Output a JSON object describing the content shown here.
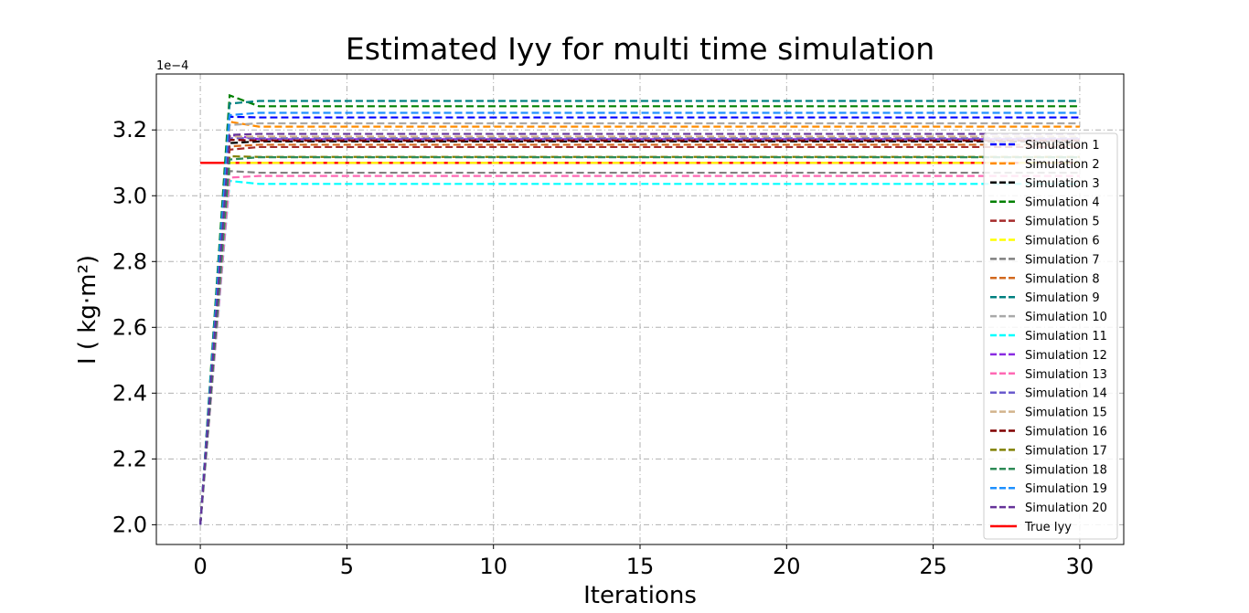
{
  "chart_data": {
    "type": "line",
    "title": "Estimated Iyy for multi time simulation",
    "xlabel": "Iterations",
    "ylabel": "I ( kg·m²)",
    "y_offset_label": "1e−4",
    "xlim": [
      -1.5,
      31.5
    ],
    "ylim": [
      1.94,
      3.37
    ],
    "x_ticks": [
      0,
      5,
      10,
      15,
      20,
      25,
      30
    ],
    "x_tick_labels": [
      "0",
      "5",
      "10",
      "15",
      "20",
      "25",
      "30"
    ],
    "y_ticks": [
      2.0,
      2.2,
      2.4,
      2.6,
      2.8,
      3.0,
      3.2
    ],
    "y_tick_labels": [
      "2.0",
      "2.2",
      "2.4",
      "2.6",
      "2.8",
      "3.0",
      "3.2"
    ],
    "grid": true,
    "legend_position": "right",
    "series": [
      {
        "name": "Simulation 1",
        "color": "#0000ff",
        "dash": true,
        "start": 2.0,
        "peak": 3.24,
        "final": 3.238
      },
      {
        "name": "Simulation 2",
        "color": "#ff8c00",
        "dash": true,
        "start": 2.0,
        "peak": 3.225,
        "final": 3.21
      },
      {
        "name": "Simulation 3",
        "color": "#000000",
        "dash": true,
        "start": 2.0,
        "peak": 3.16,
        "final": 3.165
      },
      {
        "name": "Simulation 4",
        "color": "#008000",
        "dash": true,
        "start": 2.0,
        "peak": 3.305,
        "final": 3.272
      },
      {
        "name": "Simulation 5",
        "color": "#a52a2a",
        "dash": true,
        "start": 2.0,
        "peak": 3.14,
        "final": 3.148
      },
      {
        "name": "Simulation 6",
        "color": "#ffff00",
        "dash": true,
        "start": 2.0,
        "peak": 3.1,
        "final": 3.1
      },
      {
        "name": "Simulation 7",
        "color": "#808080",
        "dash": true,
        "start": 2.0,
        "peak": 3.075,
        "final": 3.07
      },
      {
        "name": "Simulation 8",
        "color": "#d2691e",
        "dash": true,
        "start": 2.0,
        "peak": 3.15,
        "final": 3.155
      },
      {
        "name": "Simulation 9",
        "color": "#008080",
        "dash": true,
        "start": 2.0,
        "peak": 3.28,
        "final": 3.288
      },
      {
        "name": "Simulation 10",
        "color": "#a9a9a9",
        "dash": true,
        "start": 2.0,
        "peak": 3.215,
        "final": 3.22
      },
      {
        "name": "Simulation 11",
        "color": "#00ffff",
        "dash": true,
        "start": 2.0,
        "peak": 3.045,
        "final": 3.036
      },
      {
        "name": "Simulation 12",
        "color": "#8a2be2",
        "dash": true,
        "start": 2.0,
        "peak": 3.185,
        "final": 3.172
      },
      {
        "name": "Simulation 13",
        "color": "#ff69b4",
        "dash": true,
        "start": 2.0,
        "peak": 3.055,
        "final": 3.06
      },
      {
        "name": "Simulation 14",
        "color": "#6a5acd",
        "dash": true,
        "start": 2.0,
        "peak": 3.175,
        "final": 3.175
      },
      {
        "name": "Simulation 15",
        "color": "#d2b48c",
        "dash": true,
        "start": 2.0,
        "peak": 3.18,
        "final": 3.18
      },
      {
        "name": "Simulation 16",
        "color": "#800000",
        "dash": true,
        "start": 2.0,
        "peak": 3.17,
        "final": 3.168
      },
      {
        "name": "Simulation 17",
        "color": "#808000",
        "dash": true,
        "start": 2.0,
        "peak": 3.12,
        "final": 3.118
      },
      {
        "name": "Simulation 18",
        "color": "#2e8b57",
        "dash": true,
        "start": 2.0,
        "peak": 3.11,
        "final": 3.117
      },
      {
        "name": "Simulation 19",
        "color": "#1e90ff",
        "dash": true,
        "start": 2.0,
        "peak": 3.245,
        "final": 3.252
      },
      {
        "name": "Simulation 20",
        "color": "#663399",
        "dash": true,
        "start": 2.0,
        "peak": 3.185,
        "final": 3.188
      }
    ],
    "reference": {
      "name": "True Iyy",
      "color": "#ff0000",
      "value": 3.1,
      "x": [
        0,
        30
      ]
    }
  }
}
